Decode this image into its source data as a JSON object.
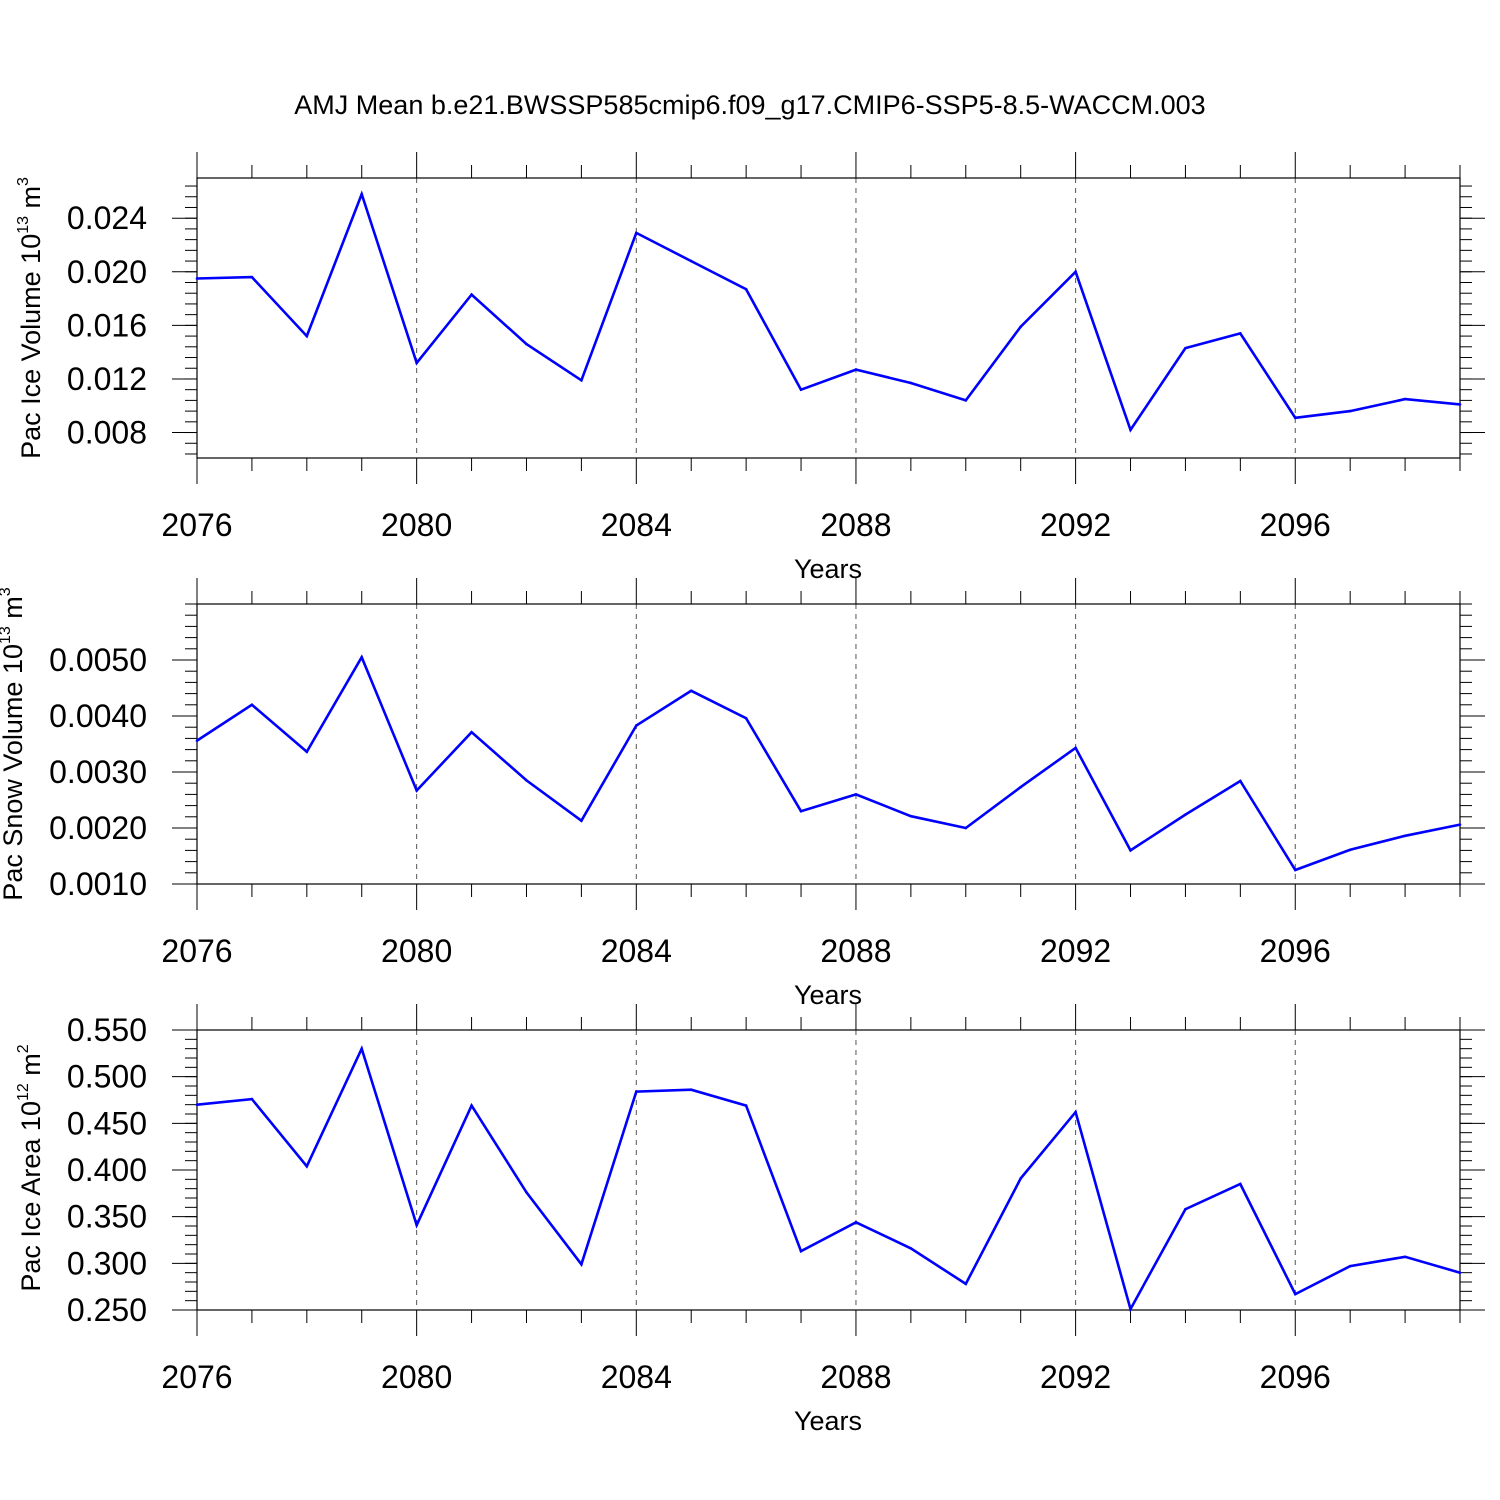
{
  "title": "AMJ Mean b.e21.BWSSP585cmip6.f09_g17.CMIP6-SSP5-8.5-WACCM.003",
  "colors": {
    "line": "#0000ff",
    "axis": "#000000",
    "grid": "#555555"
  },
  "chart_data": [
    {
      "type": "line",
      "xlabel": "Years",
      "ylabel": {
        "text": "Pac Ice Volume 10",
        "exp": "13",
        "unit": " m",
        "unit_exp": "3"
      },
      "xlim": [
        2076,
        2099
      ],
      "ylim": [
        0.0061,
        0.027
      ],
      "xticks": [
        "2076",
        "2080",
        "2084",
        "2088",
        "2092",
        "2096"
      ],
      "yticks": [
        "0.008",
        "0.012",
        "0.016",
        "0.020",
        "0.024"
      ],
      "grid": "vertical dashed at major x ticks",
      "x": [
        2076,
        2077,
        2078,
        2079,
        2080,
        2081,
        2082,
        2083,
        2084,
        2085,
        2086,
        2087,
        2088,
        2089,
        2090,
        2091,
        2092,
        2093,
        2094,
        2095,
        2096,
        2097,
        2098,
        2099
      ],
      "values": [
        0.0195,
        0.0196,
        0.0152,
        0.0258,
        0.0132,
        0.0183,
        0.0146,
        0.0119,
        0.0229,
        0.0208,
        0.0187,
        0.0112,
        0.0127,
        0.0117,
        0.0104,
        0.0159,
        0.02,
        0.0082,
        0.0143,
        0.0154,
        0.0091,
        0.0096,
        0.0105,
        0.0101
      ]
    },
    {
      "type": "line",
      "xlabel": "Years",
      "ylabel": {
        "text": "Pac Snow Volume 10",
        "exp": "13",
        "unit": " m",
        "unit_exp": "3"
      },
      "xlim": [
        2076,
        2099
      ],
      "ylim": [
        0.001,
        0.006
      ],
      "xticks": [
        "2076",
        "2080",
        "2084",
        "2088",
        "2092",
        "2096"
      ],
      "yticks": [
        "0.0010",
        "0.0020",
        "0.0030",
        "0.0040",
        "0.0050"
      ],
      "grid": "vertical dashed at major x ticks",
      "x": [
        2076,
        2077,
        2078,
        2079,
        2080,
        2081,
        2082,
        2083,
        2084,
        2085,
        2086,
        2087,
        2088,
        2089,
        2090,
        2091,
        2092,
        2093,
        2094,
        2095,
        2096,
        2097,
        2098,
        2099
      ],
      "values": [
        0.00356,
        0.0042,
        0.00336,
        0.00505,
        0.00267,
        0.00371,
        0.00285,
        0.00213,
        0.00383,
        0.00445,
        0.00396,
        0.0023,
        0.0026,
        0.00221,
        0.002,
        0.00273,
        0.00343,
        0.0016,
        0.00224,
        0.00284,
        0.00125,
        0.00161,
        0.00186,
        0.00206
      ]
    },
    {
      "type": "line",
      "xlabel": "Years",
      "ylabel": {
        "text": "Pac Ice Area 10",
        "exp": "12",
        "unit": " m",
        "unit_exp": "2"
      },
      "xlim": [
        2076,
        2099
      ],
      "ylim": [
        0.25,
        0.55
      ],
      "xticks": [
        "2076",
        "2080",
        "2084",
        "2088",
        "2092",
        "2096"
      ],
      "yticks": [
        "0.250",
        "0.300",
        "0.350",
        "0.400",
        "0.450",
        "0.500",
        "0.550"
      ],
      "grid": "vertical dashed at major x ticks",
      "x": [
        2076,
        2077,
        2078,
        2079,
        2080,
        2081,
        2082,
        2083,
        2084,
        2085,
        2086,
        2087,
        2088,
        2089,
        2090,
        2091,
        2092,
        2093,
        2094,
        2095,
        2096,
        2097,
        2098,
        2099
      ],
      "values": [
        0.47,
        0.476,
        0.404,
        0.53,
        0.341,
        0.469,
        0.376,
        0.299,
        0.484,
        0.486,
        0.469,
        0.313,
        0.344,
        0.316,
        0.278,
        0.391,
        0.462,
        0.251,
        0.358,
        0.385,
        0.267,
        0.297,
        0.307,
        0.29
      ]
    }
  ]
}
